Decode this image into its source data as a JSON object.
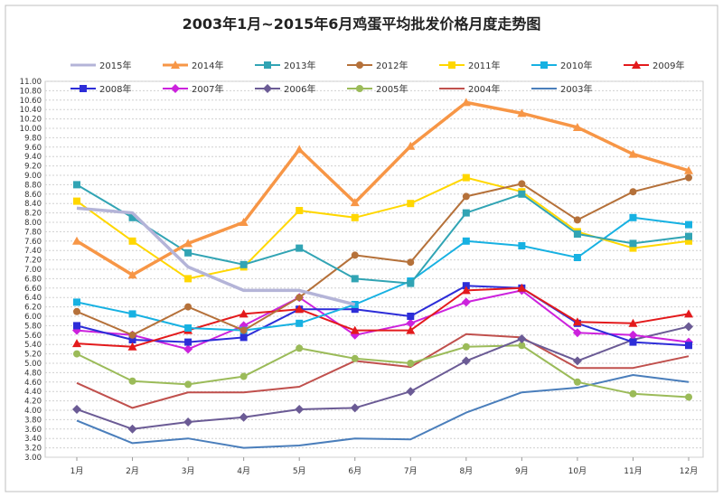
{
  "chart_data": {
    "type": "line",
    "title": "2003年1月~2015年6月鸡蛋平均批发价格月度走势图",
    "xlabel": "",
    "ylabel": "",
    "ylim": [
      3.0,
      11.0
    ],
    "ystep": 0.2,
    "grid": true,
    "legend_position": "top",
    "categories": [
      "1月",
      "2月",
      "3月",
      "4月",
      "5月",
      "6月",
      "7月",
      "8月",
      "9月",
      "10月",
      "11月",
      "12月"
    ],
    "series": [
      {
        "name": "2015年",
        "color": "#B4B4D8",
        "marker": "none",
        "width": 3.5,
        "values": [
          8.3,
          8.2,
          7.05,
          6.55,
          6.55,
          6.25,
          null,
          null,
          null,
          null,
          null,
          null
        ]
      },
      {
        "name": "2014年",
        "color": "#F79646",
        "marker": "triangle",
        "width": 3.5,
        "values": [
          7.6,
          6.88,
          7.55,
          8.0,
          9.55,
          8.42,
          9.62,
          10.55,
          10.32,
          10.02,
          9.45,
          9.1
        ]
      },
      {
        "name": "2013年",
        "color": "#31A4B4",
        "marker": "square",
        "width": 2,
        "values": [
          8.8,
          8.1,
          7.35,
          7.1,
          7.45,
          6.8,
          6.7,
          8.2,
          8.6,
          7.75,
          7.55,
          7.7
        ]
      },
      {
        "name": "2012年",
        "color": "#B5713A",
        "marker": "circle",
        "width": 2,
        "values": [
          6.1,
          5.6,
          6.2,
          5.7,
          6.4,
          7.3,
          7.15,
          8.55,
          8.82,
          8.05,
          8.65,
          8.95
        ]
      },
      {
        "name": "2011年",
        "color": "#FFD700",
        "marker": "square",
        "width": 2,
        "values": [
          8.45,
          7.6,
          6.8,
          7.05,
          8.25,
          8.1,
          8.4,
          8.95,
          8.65,
          7.8,
          7.45,
          7.6
        ]
      },
      {
        "name": "2010年",
        "color": "#17B1E2",
        "marker": "square",
        "width": 2,
        "values": [
          6.3,
          6.05,
          5.75,
          5.7,
          5.85,
          6.25,
          6.75,
          7.6,
          7.5,
          7.25,
          8.1,
          7.95
        ]
      },
      {
        "name": "2009年",
        "color": "#E31A1C",
        "marker": "triangle",
        "width": 2,
        "values": [
          5.42,
          5.35,
          5.7,
          6.05,
          6.15,
          5.7,
          5.7,
          6.55,
          6.6,
          5.88,
          5.85,
          6.05
        ]
      },
      {
        "name": "2008年",
        "color": "#2D2DD8",
        "marker": "square",
        "width": 2,
        "values": [
          5.8,
          5.5,
          5.45,
          5.55,
          6.15,
          6.15,
          6.0,
          6.65,
          6.6,
          5.85,
          5.45,
          5.38
        ]
      },
      {
        "name": "2007年",
        "color": "#CC22DD",
        "marker": "diamond",
        "width": 2,
        "values": [
          5.7,
          5.6,
          5.3,
          5.8,
          6.4,
          5.6,
          5.85,
          6.3,
          6.55,
          5.65,
          5.6,
          5.45
        ]
      },
      {
        "name": "2006年",
        "color": "#6B5B95",
        "marker": "diamond",
        "width": 2,
        "values": [
          4.02,
          3.6,
          3.75,
          3.85,
          4.02,
          4.05,
          4.4,
          5.05,
          5.52,
          5.05,
          5.5,
          5.78
        ]
      },
      {
        "name": "2005年",
        "color": "#9BBB59",
        "marker": "circle",
        "width": 2,
        "values": [
          5.2,
          4.62,
          4.55,
          4.72,
          5.32,
          5.1,
          5.0,
          5.35,
          5.38,
          4.6,
          4.35,
          4.28
        ]
      },
      {
        "name": "2004年",
        "color": "#C0504D",
        "marker": "none",
        "width": 2,
        "values": [
          4.58,
          4.05,
          4.38,
          4.38,
          4.5,
          5.05,
          4.92,
          5.62,
          5.55,
          4.9,
          4.9,
          5.15
        ]
      },
      {
        "name": "2003年",
        "color": "#4A7EBB",
        "marker": "none",
        "width": 2,
        "values": [
          3.78,
          3.3,
          3.4,
          3.2,
          3.25,
          3.4,
          3.38,
          3.95,
          4.38,
          4.48,
          4.75,
          4.6
        ]
      }
    ]
  }
}
